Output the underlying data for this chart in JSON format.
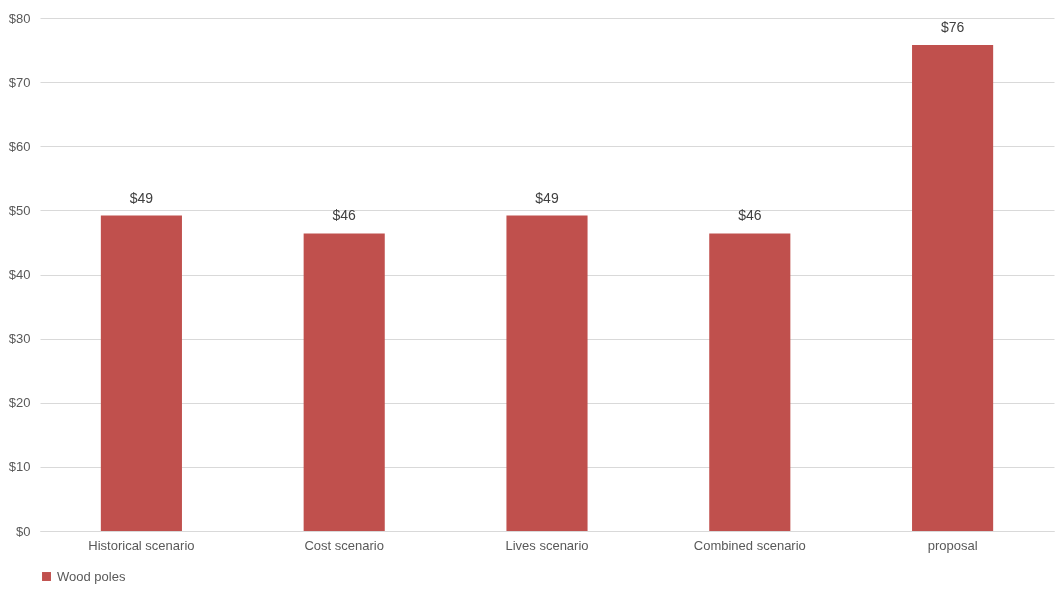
{
  "chart_data": {
    "type": "bar",
    "categories": [
      "Historical scenario",
      "Cost scenario",
      "Lives scenario",
      "Combined scenario",
      "proposal"
    ],
    "series": [
      {
        "name": "Wood poles",
        "color": "#c0504d",
        "values": [
          49.2,
          46.4,
          49.2,
          46.4,
          75.8
        ],
        "value_labels": [
          "$49",
          "$46",
          "$49",
          "$46",
          "$76"
        ]
      }
    ],
    "ylim": [
      0,
      80
    ],
    "yticks": [
      {
        "value": 0,
        "label": "$0"
      },
      {
        "value": 10,
        "label": "$10"
      },
      {
        "value": 20,
        "label": "$20"
      },
      {
        "value": 30,
        "label": "$30"
      },
      {
        "value": 40,
        "label": "$40"
      },
      {
        "value": 50,
        "label": "$50"
      },
      {
        "value": 60,
        "label": "$60"
      },
      {
        "value": 70,
        "label": "$70"
      },
      {
        "value": 80,
        "label": "$80"
      }
    ],
    "grid": "y",
    "legend": "bottom"
  }
}
